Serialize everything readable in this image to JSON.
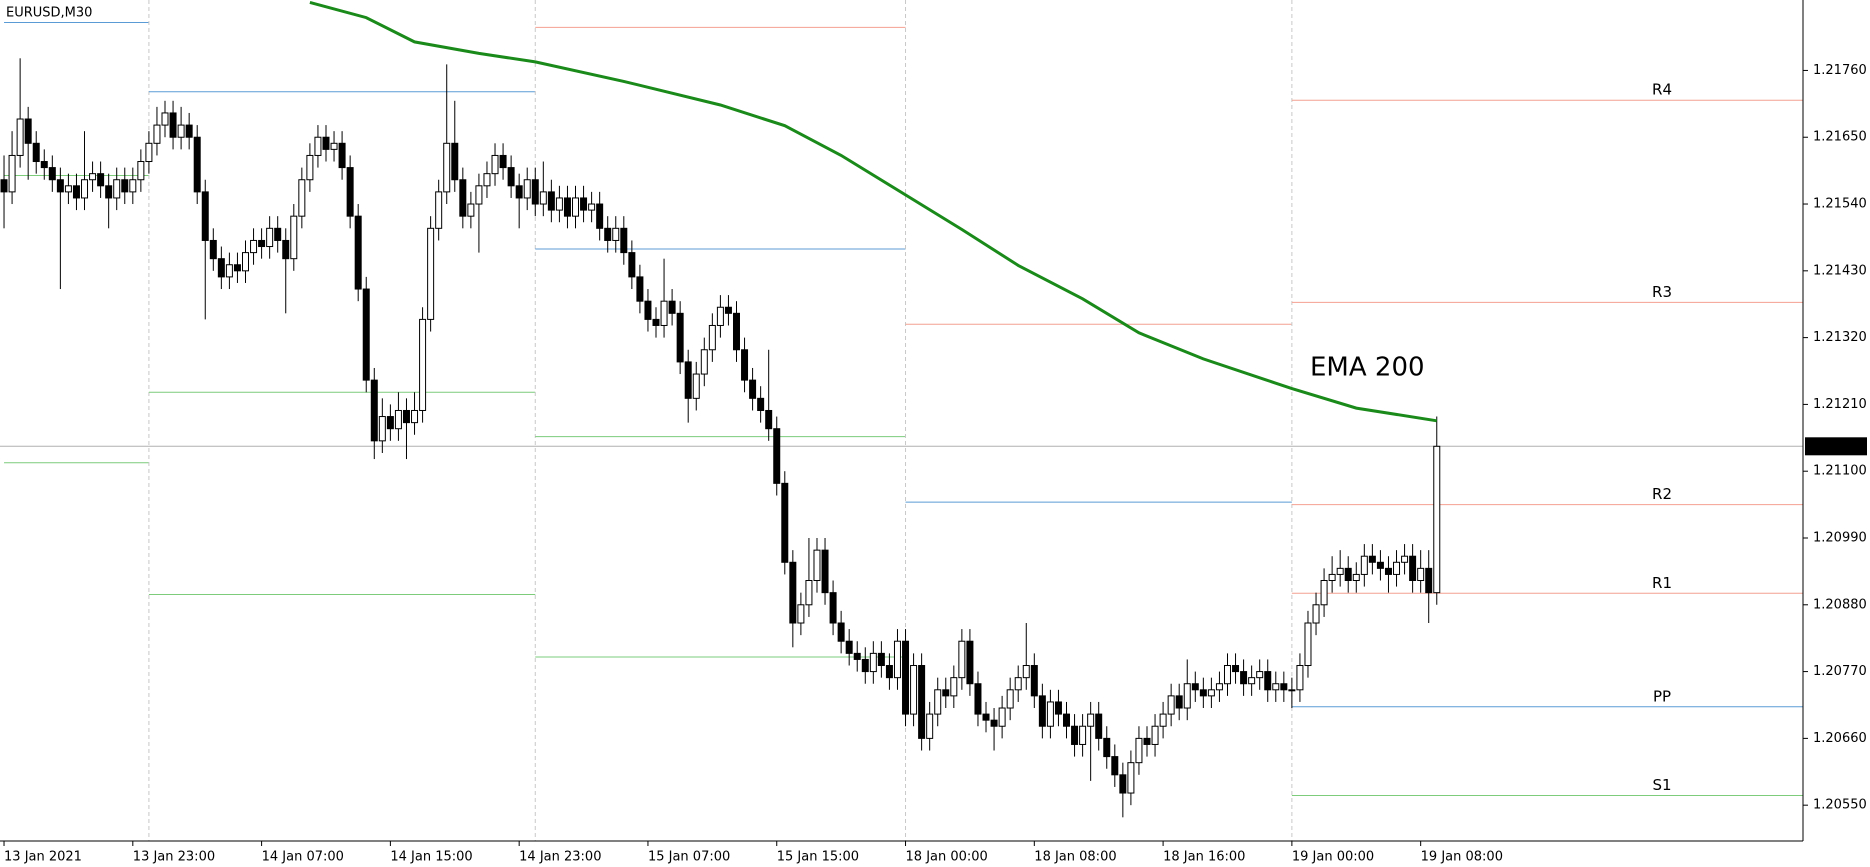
{
  "chart_data": {
    "type": "candlestick",
    "title": "EURUSD,M30",
    "ylim": [
      1.20491,
      1.21876
    ],
    "yticks": [
      {
        "value": 1.2176,
        "label": "1.21760"
      },
      {
        "value": 1.2165,
        "label": "1.21650"
      },
      {
        "value": 1.2154,
        "label": "1.21540"
      },
      {
        "value": 1.2143,
        "label": "1.21430"
      },
      {
        "value": 1.2132,
        "label": "1.21320"
      },
      {
        "value": 1.2121,
        "label": "1.21210"
      },
      {
        "value": 1.211,
        "label": "1.21100"
      },
      {
        "value": 1.2099,
        "label": "1.20990"
      },
      {
        "value": 1.2088,
        "label": "1.20880"
      },
      {
        "value": 1.2077,
        "label": "1.20770"
      },
      {
        "value": 1.2066,
        "label": "1.20660"
      },
      {
        "value": 1.2055,
        "label": "1.20550"
      }
    ],
    "xlim": [
      -0.5,
      223.5
    ],
    "xticks": [
      {
        "value": 0,
        "label": "13 Jan 2021"
      },
      {
        "value": 16,
        "label": "13 Jan 23:00"
      },
      {
        "value": 32,
        "label": "14 Jan 07:00"
      },
      {
        "value": 48,
        "label": "14 Jan 15:00"
      },
      {
        "value": 64,
        "label": "14 Jan 23:00"
      },
      {
        "value": 80,
        "label": "15 Jan 07:00"
      },
      {
        "value": 96,
        "label": "15 Jan 15:00"
      },
      {
        "value": 112,
        "label": "18 Jan 00:00"
      },
      {
        "value": 128,
        "label": "18 Jan 08:00"
      },
      {
        "value": 144,
        "label": "18 Jan 16:00"
      },
      {
        "value": 160,
        "label": "19 Jan 00:00"
      },
      {
        "value": 176,
        "label": "19 Jan 08:00"
      }
    ],
    "up_color": "#ffffff",
    "down_color": "#000000",
    "current_price": {
      "value": 1.21141,
      "label": "1.21141"
    },
    "ema": {
      "name": "EMA 200",
      "color": "#1a8a1a",
      "x": [
        38,
        45,
        51,
        59,
        66,
        77,
        89,
        97,
        104,
        112,
        119,
        126,
        134,
        141,
        149,
        160,
        168,
        178
      ],
      "values": [
        1.21872,
        1.21847,
        1.21807,
        1.21788,
        1.21774,
        1.21742,
        1.21703,
        1.21669,
        1.2162,
        1.21555,
        1.21498,
        1.21439,
        1.21384,
        1.21328,
        1.21285,
        1.21236,
        1.21204,
        1.21183
      ]
    },
    "pivots": [
      {
        "start": 0,
        "end": 18,
        "levels": [
          {
            "value": 1.21839,
            "color": "#5b9bd5"
          },
          {
            "value": 1.21587,
            "color": "#7ccc7c"
          },
          {
            "value": 1.21114,
            "color": "#7ccc7c"
          }
        ]
      },
      {
        "start": 18,
        "end": 66,
        "levels": [
          {
            "value": 1.21725,
            "color": "#5b9bd5"
          },
          {
            "value": 1.2123,
            "color": "#7ccc7c"
          },
          {
            "value": 1.20897,
            "color": "#7ccc7c"
          }
        ]
      },
      {
        "start": 66,
        "end": 112,
        "levels": [
          {
            "value": 1.21831,
            "color": "#f4a090"
          },
          {
            "value": 1.21466,
            "color": "#5b9bd5"
          },
          {
            "value": 1.21157,
            "color": "#7ccc7c"
          },
          {
            "value": 1.20794,
            "color": "#7ccc7c"
          }
        ]
      },
      {
        "start": 112,
        "end": 160,
        "levels": [
          {
            "value": 1.21342,
            "color": "#f4a090"
          },
          {
            "value": 1.21049,
            "color": "#5b9bd5"
          }
        ]
      },
      {
        "start": 160,
        "levels": [
          {
            "name": "R4",
            "value": 1.21711,
            "color": "#f4a090"
          },
          {
            "name": "R3",
            "value": 1.21378,
            "color": "#f4a090"
          },
          {
            "name": "R2",
            "value": 1.21045,
            "color": "#f4a090"
          },
          {
            "name": "R1",
            "value": 1.20899,
            "color": "#f4a090"
          },
          {
            "name": "PP",
            "value": 1.20712,
            "color": "#5b9bd5"
          },
          {
            "name": "S1",
            "value": 1.20566,
            "color": "#7ccc7c"
          }
        ]
      }
    ],
    "candles": [
      [
        1.2158,
        1.2162,
        1.215,
        1.2156
      ],
      [
        1.2156,
        1.2166,
        1.2154,
        1.2162
      ],
      [
        1.2162,
        1.2178,
        1.216,
        1.2168
      ],
      [
        1.2168,
        1.217,
        1.2158,
        1.2164
      ],
      [
        1.2164,
        1.2166,
        1.2159,
        1.2161
      ],
      [
        1.2161,
        1.2163,
        1.2158,
        1.216
      ],
      [
        1.216,
        1.2162,
        1.2156,
        1.2158
      ],
      [
        1.2158,
        1.216,
        1.214,
        1.2156
      ],
      [
        1.2156,
        1.2159,
        1.2154,
        1.2157
      ],
      [
        1.2157,
        1.2159,
        1.2153,
        1.2155
      ],
      [
        1.2155,
        1.2166,
        1.2153,
        1.2158
      ],
      [
        1.2158,
        1.2161,
        1.2156,
        1.2159
      ],
      [
        1.2159,
        1.2161,
        1.2155,
        1.2157
      ],
      [
        1.2157,
        1.2159,
        1.215,
        1.2155
      ],
      [
        1.2155,
        1.216,
        1.2153,
        1.2158
      ],
      [
        1.2158,
        1.216,
        1.2154,
        1.2156
      ],
      [
        1.2156,
        1.216,
        1.2154,
        1.2158
      ],
      [
        1.2158,
        1.2163,
        1.2156,
        1.2161
      ],
      [
        1.2161,
        1.2166,
        1.2159,
        1.2164
      ],
      [
        1.2164,
        1.217,
        1.2162,
        1.2167
      ],
      [
        1.2167,
        1.2171,
        1.2165,
        1.2169
      ],
      [
        1.2169,
        1.2171,
        1.2163,
        1.2165
      ],
      [
        1.2165,
        1.217,
        1.2163,
        1.2167
      ],
      [
        1.2167,
        1.2169,
        1.2163,
        1.2165
      ],
      [
        1.2165,
        1.2167,
        1.2154,
        1.2156
      ],
      [
        1.2156,
        1.2158,
        1.2135,
        1.2148
      ],
      [
        1.2148,
        1.215,
        1.2143,
        1.2145
      ],
      [
        1.2145,
        1.2147,
        1.214,
        1.2142
      ],
      [
        1.2142,
        1.2146,
        1.214,
        1.2144
      ],
      [
        1.2144,
        1.2146,
        1.2141,
        1.2143
      ],
      [
        1.2143,
        1.2148,
        1.2141,
        1.2146
      ],
      [
        1.2146,
        1.215,
        1.2144,
        1.2148
      ],
      [
        1.2148,
        1.215,
        1.2145,
        1.2147
      ],
      [
        1.2147,
        1.2152,
        1.2145,
        1.215
      ],
      [
        1.215,
        1.2152,
        1.2146,
        1.2148
      ],
      [
        1.2148,
        1.215,
        1.2136,
        1.2145
      ],
      [
        1.2145,
        1.2154,
        1.2143,
        1.2152
      ],
      [
        1.2152,
        1.216,
        1.215,
        1.2158
      ],
      [
        1.2158,
        1.2164,
        1.2156,
        1.2162
      ],
      [
        1.2162,
        1.2167,
        1.216,
        1.2165
      ],
      [
        1.2165,
        1.2167,
        1.2161,
        1.2163
      ],
      [
        1.2163,
        1.2166,
        1.2161,
        1.2164
      ],
      [
        1.2164,
        1.2166,
        1.2158,
        1.216
      ],
      [
        1.216,
        1.2162,
        1.215,
        1.2152
      ],
      [
        1.2152,
        1.2154,
        1.2138,
        1.214
      ],
      [
        1.214,
        1.2142,
        1.2123,
        1.2125
      ],
      [
        1.2125,
        1.2127,
        1.2112,
        1.2115
      ],
      [
        1.2115,
        1.2122,
        1.2113,
        1.2119
      ],
      [
        1.2119,
        1.2121,
        1.2115,
        1.2117
      ],
      [
        1.2117,
        1.2123,
        1.2115,
        1.212
      ],
      [
        1.212,
        1.2122,
        1.2112,
        1.2118
      ],
      [
        1.2118,
        1.2123,
        1.2116,
        1.212
      ],
      [
        1.212,
        1.2137,
        1.2118,
        1.2135
      ],
      [
        1.2135,
        1.2152,
        1.2133,
        1.215
      ],
      [
        1.215,
        1.2158,
        1.2148,
        1.2156
      ],
      [
        1.2156,
        1.2177,
        1.2154,
        1.2164
      ],
      [
        1.2164,
        1.2171,
        1.2156,
        1.2158
      ],
      [
        1.2158,
        1.216,
        1.215,
        1.2152
      ],
      [
        1.2152,
        1.2156,
        1.215,
        1.2154
      ],
      [
        1.2154,
        1.2159,
        1.2146,
        1.2157
      ],
      [
        1.2157,
        1.2161,
        1.2155,
        1.2159
      ],
      [
        1.2159,
        1.2164,
        1.2157,
        1.2162
      ],
      [
        1.2162,
        1.2164,
        1.2158,
        1.216
      ],
      [
        1.216,
        1.2162,
        1.2155,
        1.2157
      ],
      [
        1.2157,
        1.2159,
        1.215,
        1.2155
      ],
      [
        1.2155,
        1.216,
        1.2153,
        1.2158
      ],
      [
        1.2158,
        1.216,
        1.2152,
        1.2154
      ],
      [
        1.2154,
        1.2161,
        1.2152,
        1.2156
      ],
      [
        1.2156,
        1.2158,
        1.2151,
        1.2153
      ],
      [
        1.2153,
        1.2157,
        1.2151,
        1.2155
      ],
      [
        1.2155,
        1.2157,
        1.215,
        1.2152
      ],
      [
        1.2152,
        1.2157,
        1.215,
        1.2155
      ],
      [
        1.2155,
        1.2157,
        1.2151,
        1.2153
      ],
      [
        1.2153,
        1.2156,
        1.2151,
        1.2154
      ],
      [
        1.2154,
        1.2156,
        1.2148,
        1.215
      ],
      [
        1.215,
        1.2152,
        1.2146,
        1.2148
      ],
      [
        1.2148,
        1.2152,
        1.2146,
        1.215
      ],
      [
        1.215,
        1.2152,
        1.2144,
        1.2146
      ],
      [
        1.2146,
        1.2148,
        1.214,
        1.2142
      ],
      [
        1.2142,
        1.2144,
        1.2136,
        1.2138
      ],
      [
        1.2138,
        1.214,
        1.2133,
        1.2135
      ],
      [
        1.2135,
        1.2137,
        1.2132,
        1.2134
      ],
      [
        1.2134,
        1.2145,
        1.2132,
        1.2138
      ],
      [
        1.2138,
        1.214,
        1.2134,
        1.2136
      ],
      [
        1.2136,
        1.2138,
        1.2126,
        1.2128
      ],
      [
        1.2128,
        1.213,
        1.2118,
        1.2122
      ],
      [
        1.2122,
        1.2128,
        1.212,
        1.2126
      ],
      [
        1.2126,
        1.2132,
        1.2124,
        1.213
      ],
      [
        1.213,
        1.2136,
        1.2128,
        1.2134
      ],
      [
        1.2134,
        1.2139,
        1.2132,
        1.2137
      ],
      [
        1.2137,
        1.2139,
        1.2134,
        1.2136
      ],
      [
        1.2136,
        1.2138,
        1.2128,
        1.213
      ],
      [
        1.213,
        1.2132,
        1.2123,
        1.2125
      ],
      [
        1.2125,
        1.2127,
        1.212,
        1.2122
      ],
      [
        1.2122,
        1.2124,
        1.2118,
        1.212
      ],
      [
        1.212,
        1.213,
        1.2115,
        1.2117
      ],
      [
        1.2117,
        1.2119,
        1.2106,
        1.2108
      ],
      [
        1.2108,
        1.211,
        1.2093,
        1.2095
      ],
      [
        1.2095,
        1.2097,
        1.2081,
        1.2085
      ],
      [
        1.2085,
        1.209,
        1.2083,
        1.2088
      ],
      [
        1.2088,
        1.2099,
        1.2086,
        1.2092
      ],
      [
        1.2092,
        1.2099,
        1.209,
        1.2097
      ],
      [
        1.2097,
        1.2099,
        1.2088,
        1.209
      ],
      [
        1.209,
        1.2092,
        1.2083,
        1.2085
      ],
      [
        1.2085,
        1.2087,
        1.208,
        1.2082
      ],
      [
        1.2082,
        1.2084,
        1.2078,
        1.208
      ],
      [
        1.208,
        1.2082,
        1.2077,
        1.2079
      ],
      [
        1.2079,
        1.2081,
        1.2075,
        1.2077
      ],
      [
        1.2077,
        1.2082,
        1.2075,
        1.208
      ],
      [
        1.208,
        1.2082,
        1.2076,
        1.2078
      ],
      [
        1.2078,
        1.208,
        1.2074,
        1.2076
      ],
      [
        1.2076,
        1.2084,
        1.2074,
        1.2082
      ],
      [
        1.2082,
        1.2084,
        1.2068,
        1.207
      ],
      [
        1.207,
        1.208,
        1.2068,
        1.2078
      ],
      [
        1.2078,
        1.208,
        1.2064,
        1.2066
      ],
      [
        1.2066,
        1.2072,
        1.2064,
        1.207
      ],
      [
        1.207,
        1.2076,
        1.2068,
        1.2074
      ],
      [
        1.2074,
        1.2076,
        1.2071,
        1.2073
      ],
      [
        1.2073,
        1.2078,
        1.2071,
        1.2076
      ],
      [
        1.2076,
        1.2084,
        1.2074,
        1.2082
      ],
      [
        1.2082,
        1.2084,
        1.2073,
        1.2075
      ],
      [
        1.2075,
        1.2077,
        1.2068,
        1.207
      ],
      [
        1.207,
        1.2072,
        1.2067,
        1.2069
      ],
      [
        1.2069,
        1.2071,
        1.2064,
        1.2068
      ],
      [
        1.2068,
        1.2073,
        1.2066,
        1.2071
      ],
      [
        1.2071,
        1.2076,
        1.2069,
        1.2074
      ],
      [
        1.2074,
        1.2078,
        1.2072,
        1.2076
      ],
      [
        1.2076,
        1.2085,
        1.2074,
        1.2078
      ],
      [
        1.2078,
        1.208,
        1.2071,
        1.2073
      ],
      [
        1.2073,
        1.2075,
        1.2066,
        1.2068
      ],
      [
        1.2068,
        1.2074,
        1.2066,
        1.2072
      ],
      [
        1.2072,
        1.2074,
        1.2068,
        1.207
      ],
      [
        1.207,
        1.2072,
        1.2066,
        1.2068
      ],
      [
        1.2068,
        1.207,
        1.2063,
        1.2065
      ],
      [
        1.2065,
        1.207,
        1.2063,
        1.2068
      ],
      [
        1.2068,
        1.2072,
        1.2059,
        1.207
      ],
      [
        1.207,
        1.2072,
        1.2064,
        1.2066
      ],
      [
        1.2066,
        1.2068,
        1.2061,
        1.2063
      ],
      [
        1.2063,
        1.2065,
        1.2058,
        1.206
      ],
      [
        1.206,
        1.2062,
        1.2053,
        1.2057
      ],
      [
        1.2057,
        1.2064,
        1.2055,
        1.2062
      ],
      [
        1.2062,
        1.2068,
        1.206,
        1.2066
      ],
      [
        1.2066,
        1.2068,
        1.2063,
        1.2065
      ],
      [
        1.2065,
        1.207,
        1.2063,
        1.2068
      ],
      [
        1.2068,
        1.2072,
        1.2066,
        1.207
      ],
      [
        1.207,
        1.2075,
        1.2068,
        1.2073
      ],
      [
        1.2073,
        1.2075,
        1.2069,
        1.2071
      ],
      [
        1.2071,
        1.2079,
        1.2069,
        1.2075
      ],
      [
        1.2075,
        1.2077,
        1.2072,
        1.2074
      ],
      [
        1.2074,
        1.2076,
        1.2071,
        1.2073
      ],
      [
        1.2073,
        1.2076,
        1.2071,
        1.2074
      ],
      [
        1.2074,
        1.2077,
        1.2072,
        1.2075
      ],
      [
        1.2075,
        1.208,
        1.2073,
        1.2078
      ],
      [
        1.2078,
        1.208,
        1.2075,
        1.2077
      ],
      [
        1.2077,
        1.2079,
        1.2073,
        1.2075
      ],
      [
        1.2075,
        1.2078,
        1.2073,
        1.2076
      ],
      [
        1.2076,
        1.2079,
        1.2074,
        1.2077
      ],
      [
        1.2077,
        1.2079,
        1.2072,
        1.2074
      ],
      [
        1.2074,
        1.2077,
        1.2072,
        1.2075
      ],
      [
        1.2075,
        1.2077,
        1.2072,
        1.2074
      ],
      [
        1.2074,
        1.2076,
        1.2071,
        1.2074
      ],
      [
        1.2074,
        1.208,
        1.2072,
        1.2078
      ],
      [
        1.2078,
        1.2087,
        1.2076,
        1.2085
      ],
      [
        1.2085,
        1.209,
        1.2083,
        1.2088
      ],
      [
        1.2088,
        1.2094,
        1.2086,
        1.2092
      ],
      [
        1.2092,
        1.2096,
        1.209,
        1.2093
      ],
      [
        1.2093,
        1.2097,
        1.2091,
        1.2094
      ],
      [
        1.2094,
        1.2096,
        1.209,
        1.2092
      ],
      [
        1.2092,
        1.2095,
        1.209,
        1.2093
      ],
      [
        1.2093,
        1.2098,
        1.2091,
        1.2096
      ],
      [
        1.2096,
        1.2098,
        1.2093,
        1.2095
      ],
      [
        1.2095,
        1.2097,
        1.2092,
        1.2094
      ],
      [
        1.2094,
        1.2096,
        1.209,
        1.2093
      ],
      [
        1.2093,
        1.2097,
        1.2091,
        1.2095
      ],
      [
        1.2095,
        1.2098,
        1.2093,
        1.2096
      ],
      [
        1.2096,
        1.2098,
        1.209,
        1.2092
      ],
      [
        1.2092,
        1.2097,
        1.209,
        1.2094
      ],
      [
        1.2094,
        1.2097,
        1.2085,
        1.209
      ],
      [
        1.209,
        1.2119,
        1.2088,
        1.21141
      ]
    ]
  }
}
